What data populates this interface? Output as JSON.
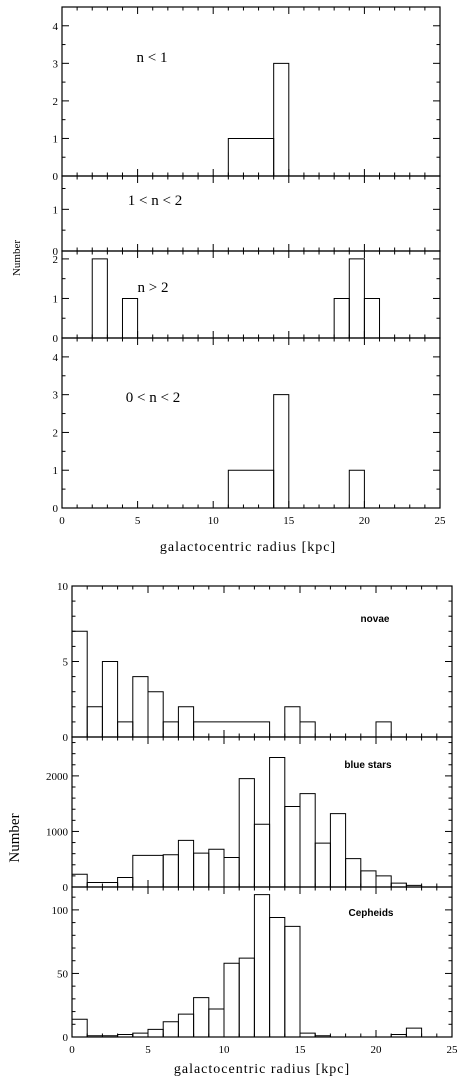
{
  "figure_a": {
    "ylabel": "Number",
    "xlabel": "galactocentric radius [kpc]"
  },
  "figure_b": {
    "ylabel": "Number",
    "xlabel": "galactocentric radius [kpc]"
  },
  "chart_data": [
    {
      "type": "histogram",
      "panel_label": "n < 1",
      "x_tick_labels": [
        "0",
        "5",
        "10",
        "15",
        "20",
        "25"
      ],
      "y_tick_labels": [
        "0",
        "1",
        "2",
        "3",
        "4"
      ],
      "xlim": [
        0,
        25
      ],
      "ylim": [
        0,
        4.5
      ],
      "bins": [
        {
          "x0": 11,
          "x1": 14,
          "value": 1
        },
        {
          "x0": 14,
          "x1": 15,
          "value": 3
        }
      ]
    },
    {
      "type": "histogram",
      "panel_label": "1 < n < 2",
      "y_tick_labels": [
        "0",
        "1"
      ],
      "xlim": [
        0,
        25
      ],
      "ylim": [
        0,
        1.8
      ],
      "bins": []
    },
    {
      "type": "histogram",
      "panel_label": "n > 2",
      "y_tick_labels": [
        "0",
        "1",
        "2"
      ],
      "xlim": [
        0,
        25
      ],
      "ylim": [
        0,
        2.2
      ],
      "bins": [
        {
          "x0": 2,
          "x1": 3,
          "value": 2
        },
        {
          "x0": 4,
          "x1": 5,
          "value": 1
        },
        {
          "x0": 18,
          "x1": 19,
          "value": 1
        },
        {
          "x0": 19,
          "x1": 20,
          "value": 2
        },
        {
          "x0": 20,
          "x1": 21,
          "value": 1
        }
      ]
    },
    {
      "type": "histogram",
      "panel_label": "0 < n < 2",
      "y_tick_labels": [
        "0",
        "1",
        "2",
        "3",
        "4"
      ],
      "xlim": [
        0,
        25
      ],
      "ylim": [
        0,
        4.5
      ],
      "bins": [
        {
          "x0": 11,
          "x1": 14,
          "value": 1
        },
        {
          "x0": 14,
          "x1": 15,
          "value": 3
        },
        {
          "x0": 19,
          "x1": 20,
          "value": 1
        }
      ]
    },
    {
      "type": "histogram",
      "panel_label": "novae",
      "y_tick_labels": [
        "0",
        "5",
        "10"
      ],
      "xlim": [
        0,
        25
      ],
      "ylim": [
        0,
        10
      ],
      "bins": [
        {
          "x0": 0,
          "x1": 1,
          "value": 7
        },
        {
          "x0": 1,
          "x1": 2,
          "value": 2
        },
        {
          "x0": 2,
          "x1": 3,
          "value": 5
        },
        {
          "x0": 3,
          "x1": 4,
          "value": 1
        },
        {
          "x0": 4,
          "x1": 5,
          "value": 4
        },
        {
          "x0": 5,
          "x1": 6,
          "value": 3
        },
        {
          "x0": 6,
          "x1": 7,
          "value": 1
        },
        {
          "x0": 7,
          "x1": 8,
          "value": 2
        },
        {
          "x0": 8,
          "x1": 13,
          "value": 1
        },
        {
          "x0": 14,
          "x1": 15,
          "value": 2
        },
        {
          "x0": 15,
          "x1": 16,
          "value": 1
        },
        {
          "x0": 20,
          "x1": 21,
          "value": 1
        }
      ]
    },
    {
      "type": "histogram",
      "panel_label": "blue stars",
      "y_tick_labels": [
        "0",
        "1000",
        "2000"
      ],
      "xlim": [
        0,
        25
      ],
      "ylim": [
        0,
        2700
      ],
      "bins": [
        {
          "x0": 0,
          "x1": 1,
          "value": 230
        },
        {
          "x0": 1,
          "x1": 3,
          "value": 80
        },
        {
          "x0": 3,
          "x1": 4,
          "value": 170
        },
        {
          "x0": 4,
          "x1": 6,
          "value": 570
        },
        {
          "x0": 6,
          "x1": 7,
          "value": 580
        },
        {
          "x0": 7,
          "x1": 8,
          "value": 840
        },
        {
          "x0": 8,
          "x1": 9,
          "value": 610
        },
        {
          "x0": 9,
          "x1": 10,
          "value": 680
        },
        {
          "x0": 10,
          "x1": 11,
          "value": 530
        },
        {
          "x0": 11,
          "x1": 12,
          "value": 1950
        },
        {
          "x0": 12,
          "x1": 13,
          "value": 1130
        },
        {
          "x0": 13,
          "x1": 14,
          "value": 2330
        },
        {
          "x0": 14,
          "x1": 15,
          "value": 1450
        },
        {
          "x0": 15,
          "x1": 16,
          "value": 1680
        },
        {
          "x0": 16,
          "x1": 17,
          "value": 790
        },
        {
          "x0": 17,
          "x1": 18,
          "value": 1320
        },
        {
          "x0": 18,
          "x1": 19,
          "value": 510
        },
        {
          "x0": 19,
          "x1": 20,
          "value": 290
        },
        {
          "x0": 20,
          "x1": 21,
          "value": 200
        },
        {
          "x0": 21,
          "x1": 22,
          "value": 70
        },
        {
          "x0": 22,
          "x1": 23,
          "value": 30
        }
      ]
    },
    {
      "type": "histogram",
      "panel_label": "Cepheids",
      "x_tick_labels": [
        "0",
        "5",
        "10",
        "15",
        "20",
        "25"
      ],
      "y_tick_labels": [
        "0",
        "50",
        "100"
      ],
      "xlim": [
        0,
        25
      ],
      "ylim": [
        0,
        118
      ],
      "bins": [
        {
          "x0": 0,
          "x1": 1,
          "value": 14
        },
        {
          "x0": 1,
          "x1": 3,
          "value": 1
        },
        {
          "x0": 3,
          "x1": 4,
          "value": 2
        },
        {
          "x0": 4,
          "x1": 5,
          "value": 3
        },
        {
          "x0": 5,
          "x1": 6,
          "value": 6
        },
        {
          "x0": 6,
          "x1": 7,
          "value": 12
        },
        {
          "x0": 7,
          "x1": 8,
          "value": 18
        },
        {
          "x0": 8,
          "x1": 9,
          "value": 31
        },
        {
          "x0": 9,
          "x1": 10,
          "value": 22
        },
        {
          "x0": 10,
          "x1": 11,
          "value": 58
        },
        {
          "x0": 11,
          "x1": 12,
          "value": 62
        },
        {
          "x0": 12,
          "x1": 13,
          "value": 112
        },
        {
          "x0": 13,
          "x1": 14,
          "value": 94
        },
        {
          "x0": 14,
          "x1": 15,
          "value": 87
        },
        {
          "x0": 15,
          "x1": 16,
          "value": 3
        },
        {
          "x0": 16,
          "x1": 17,
          "value": 1
        },
        {
          "x0": 21,
          "x1": 22,
          "value": 2
        },
        {
          "x0": 22,
          "x1": 23,
          "value": 7
        }
      ]
    }
  ]
}
